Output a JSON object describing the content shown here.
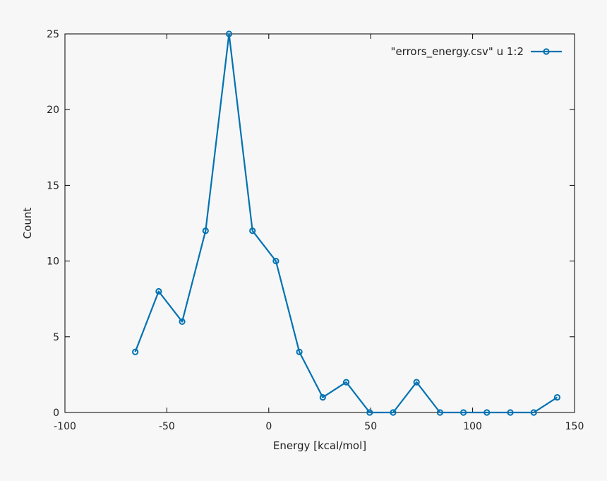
{
  "chart_data": {
    "type": "line",
    "xlabel": "Energy [kcal/mol]",
    "ylabel": "Count",
    "xlim": [
      -100,
      150
    ],
    "ylim": [
      0,
      25
    ],
    "xticks": [
      -100,
      -50,
      0,
      50,
      100,
      150
    ],
    "yticks": [
      0,
      5,
      10,
      15,
      20,
      25
    ],
    "grid": false,
    "legend_position": "top-right",
    "series": [
      {
        "name": "\"errors_energy.csv\" u 1:2",
        "color": "#0072b2",
        "marker": "circle",
        "x": [
          -65.5,
          -54,
          -42.5,
          -31,
          -19.5,
          -8,
          3.5,
          15,
          26.5,
          38,
          49.5,
          61,
          72.5,
          84,
          95.5,
          107,
          118.5,
          130,
          141.5
        ],
        "y": [
          4,
          8,
          6,
          12,
          25,
          12,
          10,
          4,
          1,
          2,
          0,
          0,
          2,
          0,
          0,
          0,
          0,
          0,
          1
        ]
      }
    ]
  }
}
